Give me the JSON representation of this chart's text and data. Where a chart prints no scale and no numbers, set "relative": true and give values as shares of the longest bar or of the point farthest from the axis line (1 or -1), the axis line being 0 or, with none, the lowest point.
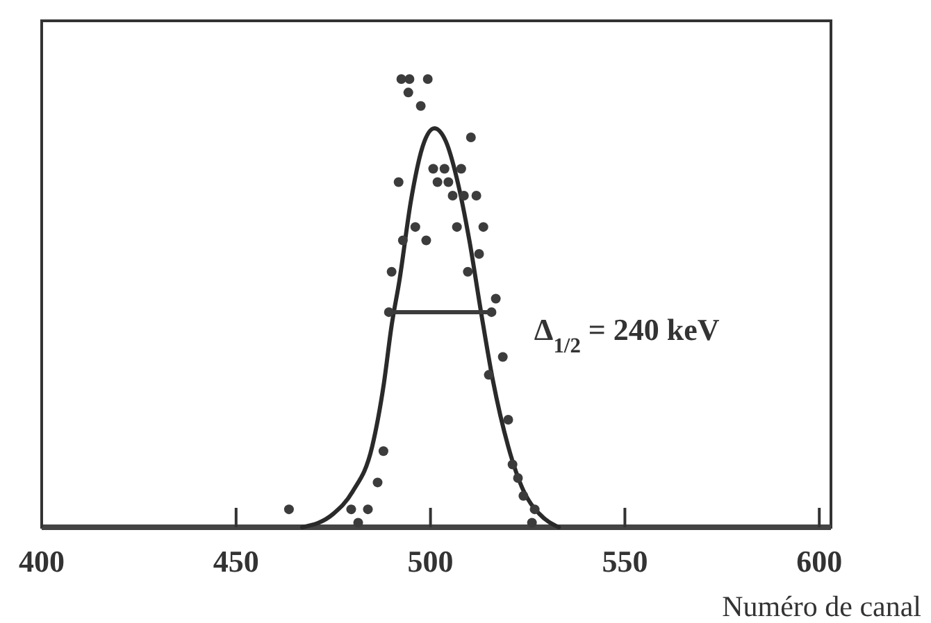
{
  "chart_data": {
    "type": "scatter",
    "relative": true,
    "xlabel": "Numéro de canal",
    "xlim": [
      400,
      603
    ],
    "xticks": [
      400,
      450,
      500,
      550,
      600
    ],
    "grid": false,
    "series": [
      {
        "marker": "circle",
        "color": "#3c3c3c",
        "x": [
          492.5,
          494.6,
          499.3,
          494.3,
          497.5,
          510.4,
          500.7,
          503.6,
          507.9,
          491.8,
          501.8,
          504.6,
          505.7,
          508.6,
          511.8,
          496.1,
          506.8,
          513.6,
          492.9,
          498.9,
          512.5,
          490.0,
          509.6,
          516.8,
          489.3,
          515.7,
          518.6,
          515.0,
          520.0,
          487.9,
          486.4,
          521.1,
          522.5,
          523.9,
          526.8,
          463.6,
          479.6,
          483.9,
          481.4,
          526.1
        ],
        "values": [
          1.0,
          1.0,
          1.0,
          0.97,
          0.94,
          0.87,
          0.8,
          0.8,
          0.8,
          0.77,
          0.77,
          0.77,
          0.74,
          0.74,
          0.74,
          0.67,
          0.67,
          0.67,
          0.64,
          0.64,
          0.61,
          0.57,
          0.57,
          0.51,
          0.48,
          0.48,
          0.38,
          0.34,
          0.24,
          0.17,
          0.1,
          0.14,
          0.11,
          0.07,
          0.04,
          0.04,
          0.04,
          0.04,
          0.01,
          0.01
        ]
      },
      {
        "type": "line",
        "color": "#2a2a2a",
        "x": [
          467,
          475,
          480,
          485,
          488,
          490,
          492,
          495,
          498,
          501,
          504,
          507,
          510,
          513,
          516,
          520,
          524,
          528,
          533
        ],
        "values": [
          0,
          0.03,
          0.08,
          0.18,
          0.32,
          0.45,
          0.55,
          0.73,
          0.85,
          0.89,
          0.86,
          0.77,
          0.64,
          0.48,
          0.33,
          0.18,
          0.08,
          0.03,
          0
        ]
      },
      {
        "type": "line",
        "color": "#3c3c3c",
        "x": [
          489,
          515
        ],
        "values": [
          0.48,
          0.48
        ]
      }
    ],
    "annotations": [
      "Δ$_{1/2}$ = 240 keV"
    ]
  }
}
